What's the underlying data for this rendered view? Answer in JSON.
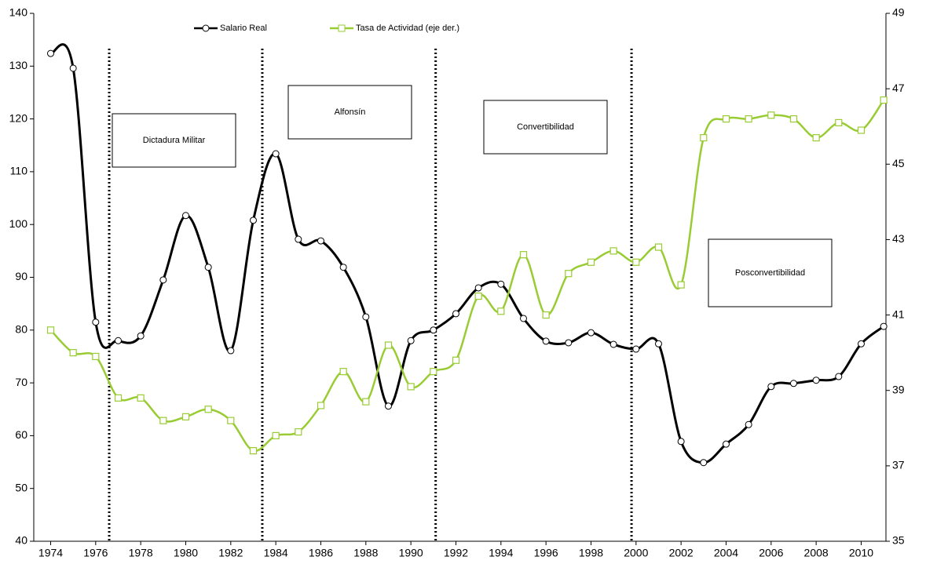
{
  "chart_data": {
    "type": "line",
    "x": [
      1974,
      1975,
      1976,
      1977,
      1978,
      1979,
      1980,
      1981,
      1982,
      1983,
      1984,
      1985,
      1986,
      1987,
      1988,
      1989,
      1990,
      1991,
      1992,
      1993,
      1994,
      1995,
      1996,
      1997,
      1998,
      1999,
      2000,
      2001,
      2002,
      2003,
      2004,
      2005,
      2006,
      2007,
      2008,
      2009,
      2010,
      2011
    ],
    "xlim": [
      1973.25,
      2011.1
    ],
    "xticks": [
      1974,
      1976,
      1978,
      1980,
      1982,
      1984,
      1986,
      1988,
      1990,
      1992,
      1994,
      1996,
      1998,
      2000,
      2002,
      2004,
      2006,
      2008,
      2010
    ],
    "ylim": [
      40,
      140
    ],
    "yticks": [
      40,
      50,
      60,
      70,
      80,
      90,
      100,
      110,
      120,
      130,
      140
    ],
    "y2lim": [
      35,
      49
    ],
    "y2ticks": [
      35,
      37,
      39,
      41,
      43,
      45,
      47,
      49
    ],
    "legend": "top",
    "series": [
      {
        "name": "Salario Real",
        "color": "#000000",
        "values": [
          132.4,
          129.6,
          81.5,
          78.0,
          78.9,
          89.5,
          101.7,
          91.9,
          76.1,
          100.8,
          113.4,
          97.2,
          96.9,
          91.9,
          82.5,
          65.6,
          78.0,
          80.0,
          83.1,
          88.0,
          88.7,
          82.2,
          77.9,
          77.6,
          79.5,
          77.3,
          76.4,
          77.4,
          58.9,
          54.9,
          58.4,
          62.1,
          69.3,
          69.9,
          70.5,
          71.2,
          77.4,
          80.7
        ]
      },
      {
        "name": "Tasa de Actividad (eje der.)",
        "color": "#99cc33",
        "axis": "y2",
        "values": [
          40.6,
          40.0,
          39.9,
          38.8,
          38.8,
          38.2,
          38.3,
          38.5,
          38.2,
          37.4,
          37.8,
          37.9,
          38.6,
          39.5,
          38.7,
          40.2,
          39.1,
          39.5,
          39.8,
          41.5,
          41.1,
          42.6,
          41.0,
          42.1,
          42.4,
          42.7,
          42.4,
          42.8,
          41.8,
          45.7,
          46.2,
          46.2,
          46.3,
          46.2,
          45.7,
          46.1,
          45.9,
          46.7
        ]
      }
    ],
    "period_boundaries": [
      1976.6,
      1983.4,
      1991.1,
      1999.8
    ],
    "annotations": [
      "Dictadura Militar",
      "Alfonsín",
      "Convertibilidad",
      "Posconvertibilidad"
    ]
  }
}
